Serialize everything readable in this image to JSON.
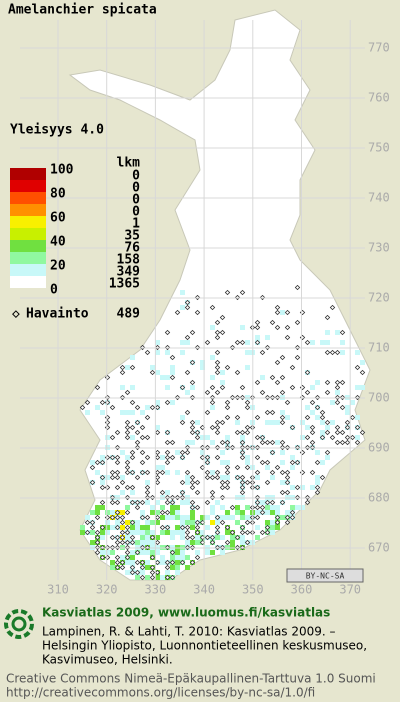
{
  "title": "Amelanchier spicata",
  "map": {
    "y_grid_labels": [
      "770",
      "760",
      "750",
      "740",
      "730",
      "720",
      "710",
      "700",
      "690",
      "680",
      "670"
    ],
    "x_grid_labels": [
      "310",
      "320",
      "330",
      "340",
      "350",
      "360",
      "370"
    ],
    "badge": "BY-NC-SA"
  },
  "legend": {
    "frequency": "Yleisyys  4.0",
    "count_header": "lkm",
    "scale_labels": [
      "100",
      "80",
      "60",
      "40",
      "20",
      "0"
    ],
    "band_colors": [
      "#b00000",
      "#e00000",
      "#ff5000",
      "#ff9000",
      "#f8f000",
      "#c8f000",
      "#70e040",
      "#90f8a0",
      "#c8f8f8",
      "#ffffff"
    ],
    "counts": [
      "0",
      "0",
      "0",
      "0",
      "1",
      "35",
      "76",
      "158",
      "349",
      "1365"
    ],
    "observation_label": "Havainto",
    "observation_count": "489"
  },
  "footer": {
    "heading": "Kasviatlas 2009, www.luomus.fi/kasviatlas",
    "citation": [
      "Lampinen, R. & Lahti, T. 2010: Kasviatlas 2009. –",
      "Helsingin Yliopisto, Luonnontieteellinen keskusmuseo,",
      "Kasvimuseo, Helsinki."
    ],
    "license": [
      "Creative Commons Nimeä-Epäkaupallinen-Tarttuva 1.0 Suomi",
      "http://creativecommons.org/licenses/by-nc-sa/1.0/fi"
    ]
  }
}
